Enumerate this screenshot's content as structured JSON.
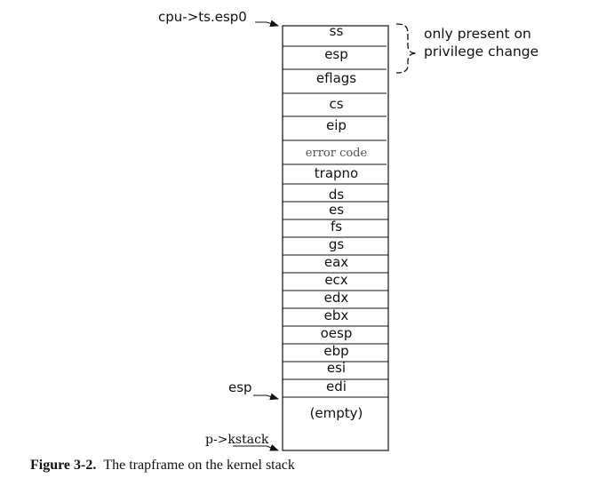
{
  "stack": {
    "cells": [
      {
        "label": "ss"
      },
      {
        "label": "esp"
      },
      {
        "label": "eflags"
      },
      {
        "label": "cs"
      },
      {
        "label": "eip"
      },
      {
        "label": "error code"
      },
      {
        "label": "trapno"
      },
      {
        "label": "ds"
      },
      {
        "label": "es"
      },
      {
        "label": "fs"
      },
      {
        "label": "gs"
      },
      {
        "label": "eax"
      },
      {
        "label": "ecx"
      },
      {
        "label": "edx"
      },
      {
        "label": "ebx"
      },
      {
        "label": "oesp"
      },
      {
        "label": "ebp"
      },
      {
        "label": "esi"
      },
      {
        "label": "edi"
      },
      {
        "label": "(empty)"
      }
    ]
  },
  "pointers": {
    "top": "cpu->ts.esp0",
    "esp": "esp",
    "kstack": "p->kstack"
  },
  "annotation": {
    "line1": "only present on",
    "line2": "privilege change"
  },
  "caption": {
    "figure": "Figure 3-2.",
    "text": "The trapframe on the kernel stack"
  }
}
